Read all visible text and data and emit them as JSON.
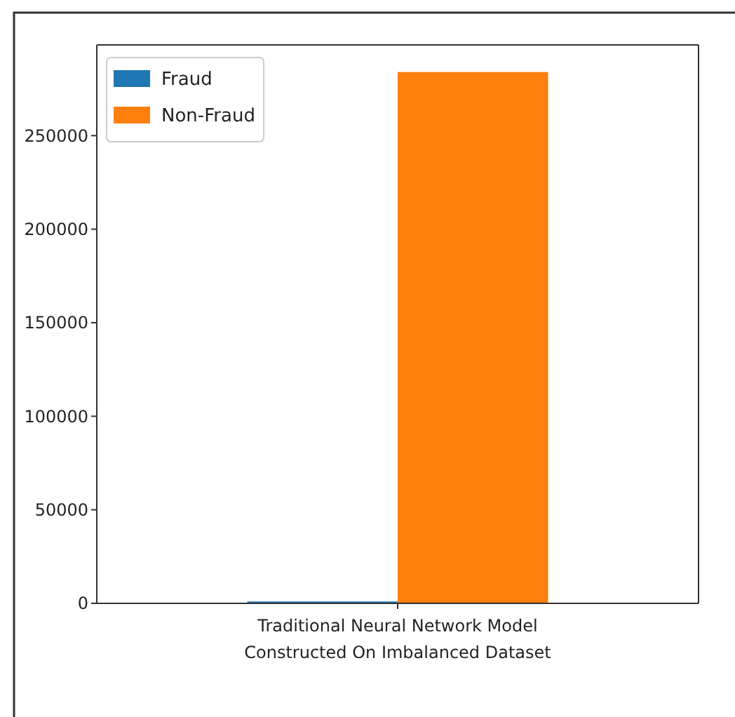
{
  "chart_data": {
    "type": "bar",
    "categories": [
      "Traditional Neural Network Model\nConstructed On Imbalanced Dataset"
    ],
    "series": [
      {
        "name": "Fraud",
        "color": "#1f77b4",
        "values": [
          1000
        ]
      },
      {
        "name": "Non-Fraud",
        "color": "#ff7f0e",
        "values": [
          284000
        ]
      }
    ],
    "ylim": [
      0,
      298500
    ],
    "yticks": [
      0,
      50000,
      100000,
      150000,
      200000,
      250000
    ],
    "legend": "top left",
    "grid": false
  }
}
